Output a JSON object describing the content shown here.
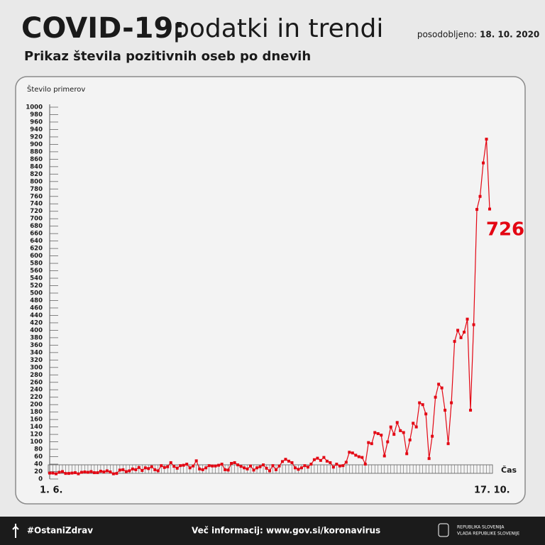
{
  "chart_data": {
    "type": "line",
    "title_bold": "COVID-19:",
    "title": "podatki in trendi",
    "updated_label": "posodobljeno:",
    "updated_date": "18. 10. 2020",
    "subtitle": "Prikaz števila pozitivnih oseb po dnevih",
    "y_label": "Število primerov",
    "x_label": "Čas",
    "color": "#e30613",
    "categories": [
      "1. 6.",
      null,
      null,
      null,
      null,
      null,
      null,
      null,
      null,
      null,
      null,
      null,
      null,
      null,
      null,
      null,
      null,
      null,
      null,
      null,
      null,
      null,
      null,
      null,
      null,
      null,
      null,
      null,
      null,
      null,
      null,
      null,
      null,
      null,
      null,
      null,
      null,
      null,
      null,
      null,
      null,
      null,
      null,
      null,
      null,
      null,
      null,
      null,
      null,
      null,
      null,
      null,
      null,
      null,
      null,
      null,
      null,
      null,
      null,
      null,
      null,
      null,
      null,
      null,
      null,
      null,
      null,
      null,
      null,
      null,
      null,
      null,
      null,
      null,
      null,
      null,
      null,
      null,
      null,
      null,
      null,
      null,
      null,
      null,
      null,
      null,
      null,
      null,
      null,
      null,
      null,
      null,
      null,
      null,
      null,
      null,
      null,
      null,
      null,
      null,
      null,
      null,
      null,
      null,
      null,
      null,
      null,
      null,
      null,
      null,
      null,
      null,
      null,
      null,
      null,
      null,
      null,
      null,
      null,
      null,
      null,
      null,
      null,
      null,
      null,
      null,
      null,
      null,
      null,
      null,
      null,
      null,
      null,
      null,
      null,
      null,
      null,
      null,
      "17. 10."
    ],
    "values": [
      16,
      16,
      14,
      18,
      20,
      15,
      15,
      16,
      17,
      14,
      18,
      19,
      18,
      20,
      17,
      17,
      21,
      19,
      22,
      19,
      14,
      15,
      24,
      25,
      20,
      22,
      27,
      25,
      31,
      23,
      30,
      28,
      33,
      25,
      22,
      36,
      31,
      33,
      44,
      34,
      29,
      36,
      37,
      40,
      30,
      35,
      49,
      27,
      25,
      30,
      36,
      35,
      35,
      37,
      40,
      25,
      24,
      42,
      44,
      38,
      34,
      30,
      27,
      35,
      24,
      30,
      33,
      38,
      29,
      22,
      36,
      25,
      35,
      47,
      53,
      48,
      44,
      30,
      26,
      30,
      36,
      32,
      40,
      52,
      56,
      50,
      58,
      48,
      44,
      32,
      40,
      35,
      36,
      45,
      72,
      70,
      64,
      60,
      58,
      40,
      98,
      95,
      125,
      122,
      118,
      62,
      100,
      140,
      120,
      152,
      130,
      125,
      68,
      105,
      150,
      140,
      205,
      200,
      175,
      55,
      115,
      220,
      255,
      245,
      185,
      95,
      205,
      370,
      400,
      380,
      395,
      430,
      185,
      415,
      725,
      760,
      850,
      914,
      726
    ],
    "ylim": [
      0,
      1000
    ],
    "yticks": [
      0,
      20,
      40,
      60,
      80,
      100,
      120,
      140,
      160,
      180,
      200,
      220,
      240,
      260,
      280,
      300,
      320,
      340,
      360,
      380,
      400,
      420,
      440,
      460,
      480,
      500,
      520,
      540,
      560,
      580,
      600,
      620,
      640,
      660,
      680,
      700,
      720,
      740,
      760,
      780,
      800,
      820,
      840,
      860,
      880,
      900,
      920,
      940,
      960,
      980,
      1000
    ]
  },
  "footer": {
    "hashtag": "#OstaniZdrav",
    "info": "Več informacij: www.gov.si/koronavirus",
    "org1": "REPUBLIKA SLOVENIJA",
    "org2": "VLADA REPUBLIKE SLOVENIJE"
  }
}
